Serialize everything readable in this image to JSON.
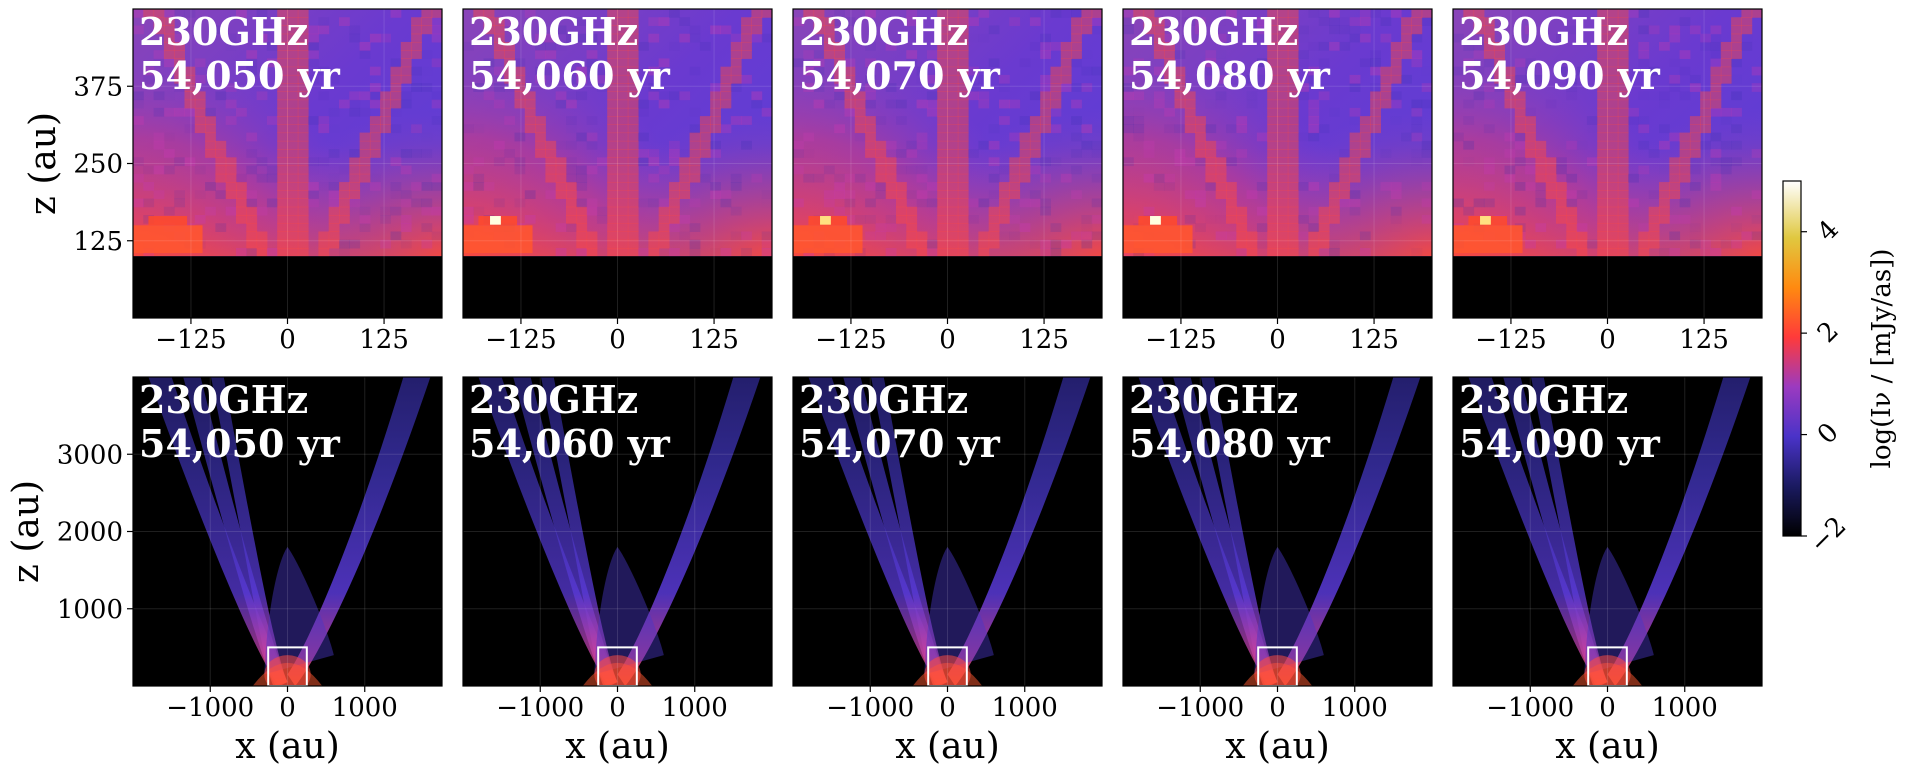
{
  "chart_data": {
    "type": "heatmap",
    "colormap": "CMRmap",
    "frequency_label": "230GHz",
    "panels": [
      {
        "row": "zoom",
        "frequency": "230GHz",
        "time": "54,050 yr",
        "xlim": [
          -200,
          200
        ],
        "zlim": [
          0,
          500
        ],
        "box_au": null
      },
      {
        "row": "zoom",
        "frequency": "230GHz",
        "time": "54,060 yr",
        "xlim": [
          -200,
          200
        ],
        "zlim": [
          0,
          500
        ],
        "box_au": null
      },
      {
        "row": "zoom",
        "frequency": "230GHz",
        "time": "54,070 yr",
        "xlim": [
          -200,
          200
        ],
        "zlim": [
          0,
          500
        ],
        "box_au": null
      },
      {
        "row": "zoom",
        "frequency": "230GHz",
        "time": "54,080 yr",
        "xlim": [
          -200,
          200
        ],
        "zlim": [
          0,
          500
        ],
        "box_au": null
      },
      {
        "row": "zoom",
        "frequency": "230GHz",
        "time": "54,090 yr",
        "xlim": [
          -200,
          200
        ],
        "zlim": [
          0,
          500
        ],
        "box_au": null
      },
      {
        "row": "wide",
        "frequency": "230GHz",
        "time": "54,050 yr",
        "xlim": [
          -2000,
          2000
        ],
        "zlim": [
          0,
          4000
        ],
        "box_au": [
          -250,
          250,
          0,
          500
        ]
      },
      {
        "row": "wide",
        "frequency": "230GHz",
        "time": "54,060 yr",
        "xlim": [
          -2000,
          2000
        ],
        "zlim": [
          0,
          4000
        ],
        "box_au": [
          -250,
          250,
          0,
          500
        ]
      },
      {
        "row": "wide",
        "frequency": "230GHz",
        "time": "54,070 yr",
        "xlim": [
          -2000,
          2000
        ],
        "zlim": [
          0,
          4000
        ],
        "box_au": [
          -250,
          250,
          0,
          500
        ]
      },
      {
        "row": "wide",
        "frequency": "230GHz",
        "time": "54,080 yr",
        "xlim": [
          -2000,
          2000
        ],
        "zlim": [
          0,
          4000
        ],
        "box_au": [
          -250,
          250,
          0,
          500
        ]
      },
      {
        "row": "wide",
        "frequency": "230GHz",
        "time": "54,090 yr",
        "xlim": [
          -2000,
          2000
        ],
        "zlim": [
          0,
          4000
        ],
        "box_au": [
          -250,
          250,
          0,
          500
        ]
      }
    ],
    "top_row": {
      "xticks": [
        -125,
        0,
        125
      ],
      "xtick_labels": [
        "−125",
        "0",
        "125"
      ],
      "yticks": [
        125,
        250,
        375
      ],
      "ytick_labels": [
        "125",
        "250",
        "375"
      ],
      "ylabel": "z (au)",
      "xlabel": ""
    },
    "bottom_row": {
      "xticks": [
        -1000,
        0,
        1000
      ],
      "xtick_labels": [
        "−1000",
        "0",
        "1000"
      ],
      "yticks": [
        1000,
        2000,
        3000
      ],
      "ytick_labels": [
        "1000",
        "2000",
        "3000"
      ],
      "ylabel": "z (au)",
      "xlabel": "x (au)"
    },
    "colorbar": {
      "label": "log(Iν / [mJy/as])",
      "range": [
        -2,
        5
      ],
      "ticks": [
        -2,
        0,
        2,
        4
      ],
      "tick_labels": [
        "−2",
        "0",
        "2",
        "4"
      ]
    },
    "grid": true
  }
}
